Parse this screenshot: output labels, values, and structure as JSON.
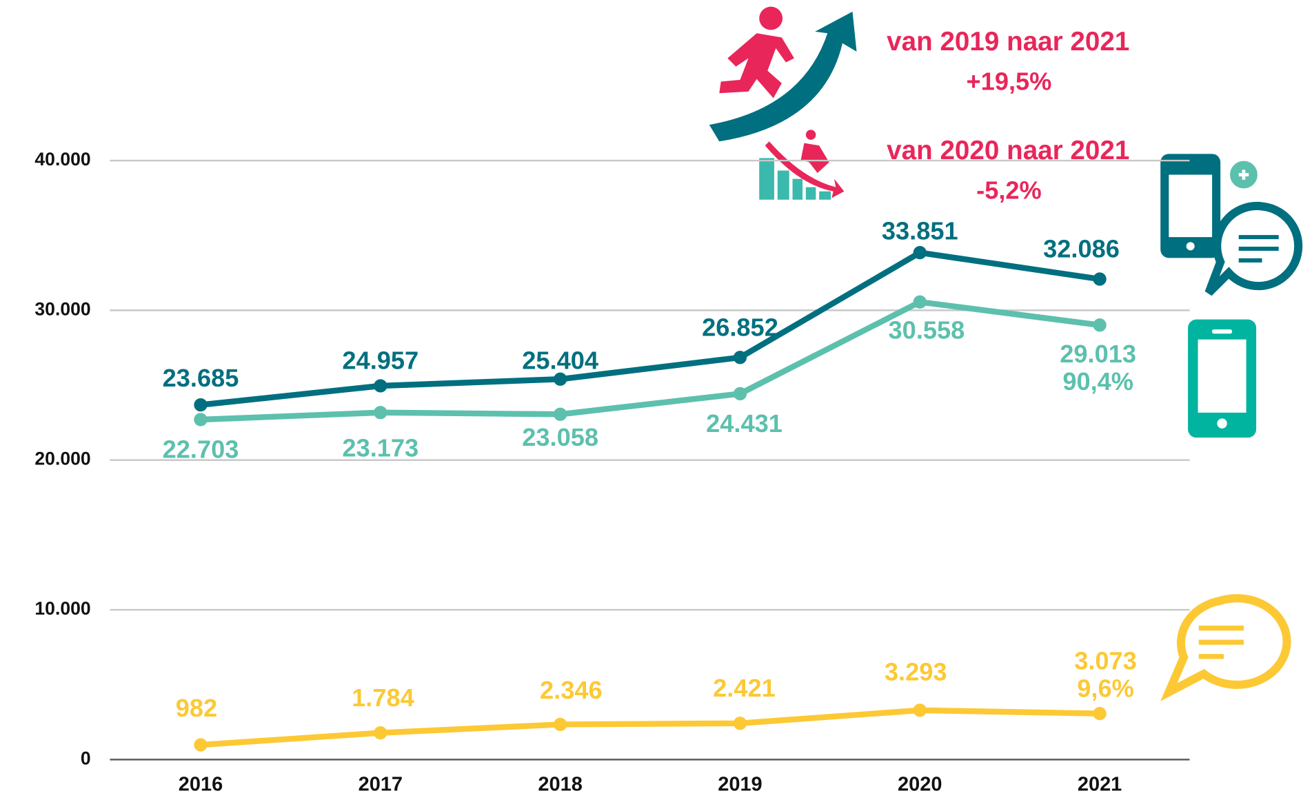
{
  "chart_data": {
    "type": "line",
    "categories": [
      "2016",
      "2017",
      "2018",
      "2019",
      "2020",
      "2021"
    ],
    "series": [
      {
        "color": "#006f7f",
        "values": [
          23685,
          24957,
          25404,
          26852,
          33851,
          32086
        ],
        "value_labels": [
          "23.685",
          "24.957",
          "25.404",
          "26.852",
          "33.851",
          "32.086"
        ]
      },
      {
        "color": "#5cc0ad",
        "values": [
          22703,
          23173,
          23058,
          24431,
          30558,
          29013
        ],
        "value_labels": [
          "22.703",
          "23.173",
          "23.058",
          "24.431",
          "30.558",
          "29.013"
        ],
        "share_label": "90,4%"
      },
      {
        "color": "#fcc935",
        "values": [
          982,
          1784,
          2346,
          2421,
          3293,
          3073
        ],
        "value_labels": [
          "982",
          "1.784",
          "2.346",
          "2.421",
          "3.293",
          "3.073"
        ],
        "share_label": "9,6%"
      }
    ],
    "ylim": [
      0,
      40000
    ],
    "yticks": [
      0,
      {
        "value": 10000,
        "label": "10.000"
      },
      {
        "value": 20000,
        "label": "20.000"
      },
      {
        "value": 30000,
        "label": "30.000"
      },
      {
        "value": 40000,
        "label": "40.000"
      }
    ],
    "grid": true,
    "annotations": [
      {
        "text": "van 2019 naar 2021",
        "color": "#e8265a"
      },
      {
        "text": "+19,5%",
        "color": "#e8265a"
      },
      {
        "text": "van 2020 naar 2021",
        "color": "#e8265a"
      },
      {
        "text": "-5,2%",
        "color": "#e8265a"
      }
    ]
  }
}
